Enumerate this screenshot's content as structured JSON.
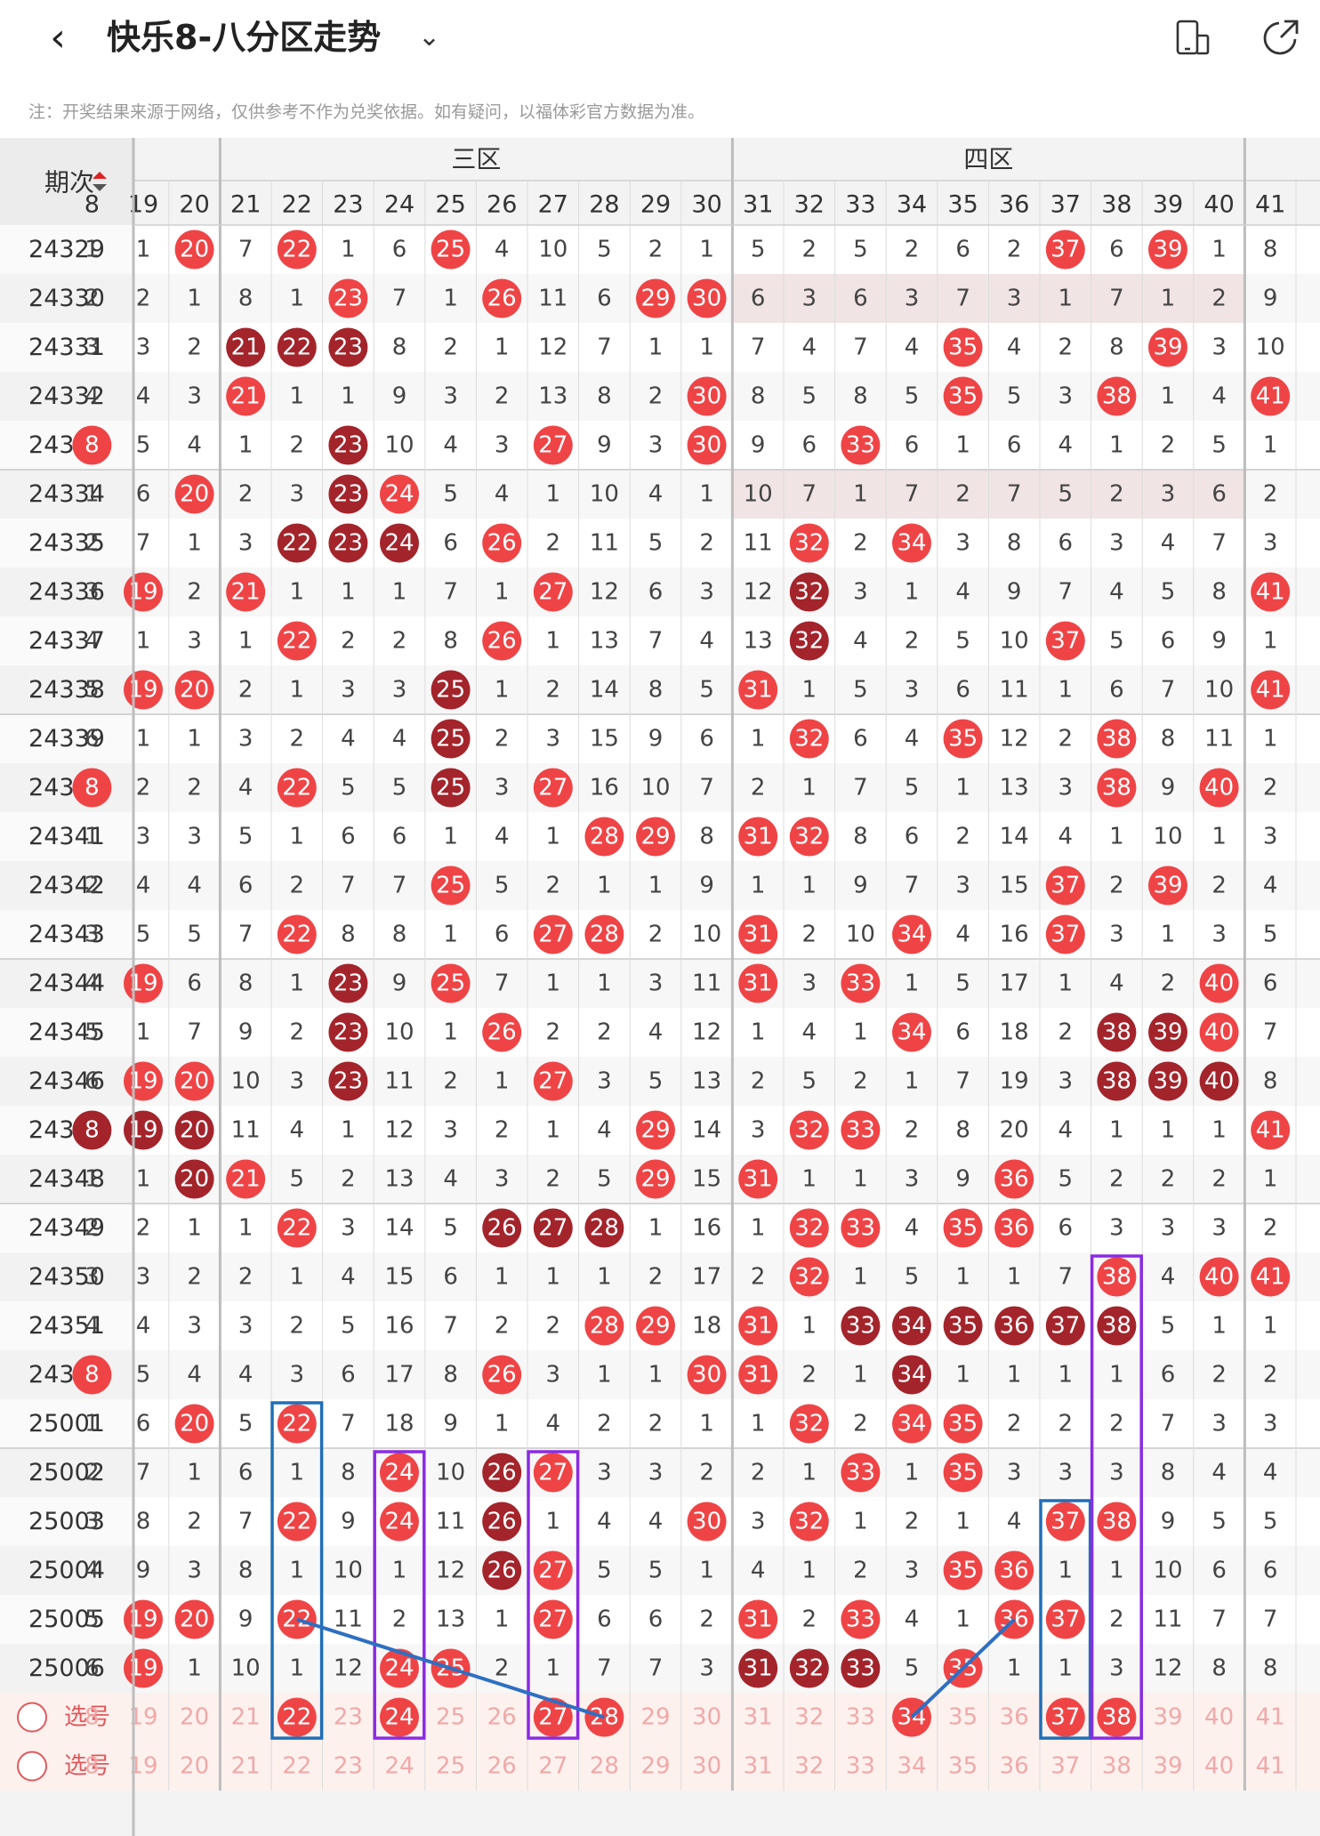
{
  "header": {
    "title": "快乐8-八分区走势",
    "back_icon": "chevron-left-icon",
    "dropdown_icon": "chevron-down-icon",
    "action_icons": [
      "phone-rotate-icon",
      "share-icon"
    ]
  },
  "note": "注：开奖结果来源于网络，仅供参考不作为兑奖依据。如有疑问，以福体彩官方数据为准。",
  "table": {
    "period_header": "期次",
    "zones": [
      {
        "label": "三区",
        "from": 21,
        "to": 30
      },
      {
        "label": "四区",
        "from": 31,
        "to": 40
      }
    ],
    "columns": [
      "8",
      "19",
      "20",
      "21",
      "22",
      "23",
      "24",
      "25",
      "26",
      "27",
      "28",
      "29",
      "30",
      "31",
      "32",
      "33",
      "34",
      "35",
      "36",
      "37",
      "38",
      "39",
      "40",
      "41"
    ],
    "periods": [
      "24329",
      "24330",
      "24331",
      "24332",
      "24333",
      "24334",
      "24335",
      "24336",
      "24337",
      "24338",
      "24339",
      "24340",
      "24341",
      "24342",
      "24343",
      "24344",
      "24345",
      "24346",
      "24347",
      "24348",
      "24349",
      "24350",
      "24351",
      "24352",
      "25001",
      "25002",
      "25003",
      "25004",
      "25005",
      "25006"
    ],
    "cells": [
      [
        "1",
        "1",
        "20",
        "7",
        "22",
        "1",
        "6",
        "25",
        "4",
        "10",
        "5",
        "2",
        "1",
        "5",
        "2",
        "5",
        "2",
        "6",
        "2",
        "37",
        "6",
        "39",
        "1",
        "8"
      ],
      [
        "2",
        "2",
        "1",
        "8",
        "1",
        "23",
        "7",
        "1",
        "26",
        "11",
        "6",
        "29",
        "30",
        "6",
        "3",
        "6",
        "3",
        "7",
        "3",
        "1",
        "7",
        "1",
        "2",
        "9"
      ],
      [
        "3",
        "3",
        "2",
        "21",
        "22",
        "23",
        "8",
        "2",
        "1",
        "12",
        "7",
        "1",
        "1",
        "7",
        "4",
        "7",
        "4",
        "35",
        "4",
        "2",
        "8",
        "39",
        "3",
        "10"
      ],
      [
        "4",
        "4",
        "3",
        "21",
        "1",
        "1",
        "9",
        "3",
        "2",
        "13",
        "8",
        "2",
        "30",
        "8",
        "5",
        "8",
        "5",
        "35",
        "5",
        "3",
        "38",
        "1",
        "4",
        "41"
      ],
      [
        "8",
        "5",
        "4",
        "1",
        "2",
        "23",
        "10",
        "4",
        "3",
        "27",
        "9",
        "3",
        "30",
        "9",
        "6",
        "33",
        "6",
        "1",
        "6",
        "4",
        "1",
        "2",
        "5",
        "1"
      ],
      [
        "1",
        "6",
        "20",
        "2",
        "3",
        "23",
        "24",
        "5",
        "4",
        "1",
        "10",
        "4",
        "1",
        "10",
        "7",
        "1",
        "7",
        "2",
        "7",
        "5",
        "2",
        "3",
        "6",
        "2"
      ],
      [
        "2",
        "7",
        "1",
        "3",
        "22",
        "23",
        "24",
        "6",
        "26",
        "2",
        "11",
        "5",
        "2",
        "11",
        "32",
        "2",
        "34",
        "3",
        "8",
        "6",
        "3",
        "4",
        "7",
        "3"
      ],
      [
        "3",
        "19",
        "2",
        "21",
        "1",
        "1",
        "1",
        "7",
        "1",
        "27",
        "12",
        "6",
        "3",
        "12",
        "32",
        "3",
        "1",
        "4",
        "9",
        "7",
        "4",
        "5",
        "8",
        "41"
      ],
      [
        "4",
        "1",
        "3",
        "1",
        "22",
        "2",
        "2",
        "8",
        "26",
        "1",
        "13",
        "7",
        "4",
        "13",
        "32",
        "4",
        "2",
        "5",
        "10",
        "37",
        "5",
        "6",
        "9",
        "1"
      ],
      [
        "5",
        "19",
        "20",
        "2",
        "1",
        "3",
        "3",
        "25",
        "1",
        "2",
        "14",
        "8",
        "5",
        "31",
        "1",
        "5",
        "3",
        "6",
        "11",
        "1",
        "6",
        "7",
        "10",
        "41"
      ],
      [
        "6",
        "1",
        "1",
        "3",
        "2",
        "4",
        "4",
        "25",
        "2",
        "3",
        "15",
        "9",
        "6",
        "1",
        "32",
        "6",
        "4",
        "35",
        "12",
        "2",
        "38",
        "8",
        "11",
        "1"
      ],
      [
        "8",
        "2",
        "2",
        "4",
        "22",
        "5",
        "5",
        "25",
        "3",
        "27",
        "16",
        "10",
        "7",
        "2",
        "1",
        "7",
        "5",
        "1",
        "13",
        "3",
        "38",
        "9",
        "40",
        "2"
      ],
      [
        "1",
        "3",
        "3",
        "5",
        "1",
        "6",
        "6",
        "1",
        "4",
        "1",
        "28",
        "29",
        "8",
        "31",
        "32",
        "8",
        "6",
        "2",
        "14",
        "4",
        "1",
        "10",
        "1",
        "3"
      ],
      [
        "2",
        "4",
        "4",
        "6",
        "2",
        "7",
        "7",
        "25",
        "5",
        "2",
        "1",
        "1",
        "9",
        "1",
        "1",
        "9",
        "7",
        "3",
        "15",
        "37",
        "2",
        "39",
        "2",
        "4"
      ],
      [
        "3",
        "5",
        "5",
        "7",
        "22",
        "8",
        "8",
        "1",
        "6",
        "27",
        "28",
        "2",
        "10",
        "31",
        "2",
        "10",
        "34",
        "4",
        "16",
        "37",
        "3",
        "1",
        "3",
        "5"
      ],
      [
        "4",
        "19",
        "6",
        "8",
        "1",
        "23",
        "9",
        "25",
        "7",
        "1",
        "1",
        "3",
        "11",
        "31",
        "3",
        "33",
        "1",
        "5",
        "17",
        "1",
        "4",
        "2",
        "40",
        "6"
      ],
      [
        "5",
        "1",
        "7",
        "9",
        "2",
        "23",
        "10",
        "1",
        "26",
        "2",
        "2",
        "4",
        "12",
        "1",
        "4",
        "1",
        "34",
        "6",
        "18",
        "2",
        "38",
        "39",
        "40",
        "7"
      ],
      [
        "6",
        "19",
        "20",
        "10",
        "3",
        "23",
        "11",
        "2",
        "1",
        "27",
        "3",
        "5",
        "13",
        "2",
        "5",
        "2",
        "1",
        "7",
        "19",
        "3",
        "38",
        "39",
        "40",
        "8"
      ],
      [
        "8",
        "19",
        "20",
        "11",
        "4",
        "1",
        "12",
        "3",
        "2",
        "1",
        "4",
        "29",
        "14",
        "3",
        "32",
        "33",
        "2",
        "8",
        "20",
        "4",
        "1",
        "1",
        "1",
        "41"
      ],
      [
        "1",
        "1",
        "20",
        "21",
        "5",
        "2",
        "13",
        "4",
        "3",
        "2",
        "5",
        "29",
        "15",
        "31",
        "1",
        "1",
        "3",
        "9",
        "36",
        "5",
        "2",
        "2",
        "2",
        "1"
      ],
      [
        "2",
        "2",
        "1",
        "1",
        "22",
        "3",
        "14",
        "5",
        "26",
        "27",
        "28",
        "1",
        "16",
        "1",
        "32",
        "33",
        "4",
        "35",
        "36",
        "6",
        "3",
        "3",
        "3",
        "2"
      ],
      [
        "3",
        "3",
        "2",
        "2",
        "1",
        "4",
        "15",
        "6",
        "1",
        "1",
        "1",
        "2",
        "17",
        "2",
        "32",
        "1",
        "5",
        "1",
        "1",
        "7",
        "38",
        "4",
        "40",
        "41"
      ],
      [
        "4",
        "4",
        "3",
        "3",
        "2",
        "5",
        "16",
        "7",
        "2",
        "2",
        "28",
        "29",
        "18",
        "31",
        "1",
        "33",
        "34",
        "35",
        "36",
        "37",
        "38",
        "5",
        "1",
        "1"
      ],
      [
        "8",
        "5",
        "4",
        "4",
        "3",
        "6",
        "17",
        "8",
        "26",
        "3",
        "1",
        "1",
        "30",
        "31",
        "2",
        "1",
        "34",
        "1",
        "1",
        "1",
        "1",
        "6",
        "2",
        "2"
      ],
      [
        "1",
        "6",
        "20",
        "5",
        "22",
        "7",
        "18",
        "9",
        "1",
        "4",
        "2",
        "2",
        "1",
        "1",
        "32",
        "2",
        "34",
        "35",
        "2",
        "2",
        "2",
        "7",
        "3",
        "3"
      ],
      [
        "2",
        "7",
        "1",
        "6",
        "1",
        "8",
        "24",
        "10",
        "26",
        "27",
        "3",
        "3",
        "2",
        "2",
        "1",
        "33",
        "1",
        "35",
        "3",
        "3",
        "3",
        "8",
        "4",
        "4"
      ],
      [
        "3",
        "8",
        "2",
        "7",
        "22",
        "9",
        "24",
        "11",
        "26",
        "1",
        "4",
        "4",
        "30",
        "3",
        "32",
        "1",
        "2",
        "1",
        "4",
        "37",
        "38",
        "9",
        "5",
        "5"
      ],
      [
        "4",
        "9",
        "3",
        "8",
        "1",
        "10",
        "1",
        "12",
        "26",
        "27",
        "5",
        "5",
        "1",
        "4",
        "1",
        "2",
        "3",
        "35",
        "36",
        "1",
        "1",
        "10",
        "6",
        "6"
      ],
      [
        "5",
        "19",
        "20",
        "9",
        "22",
        "11",
        "2",
        "13",
        "1",
        "27",
        "6",
        "6",
        "2",
        "31",
        "2",
        "33",
        "4",
        "1",
        "36",
        "37",
        "2",
        "11",
        "7",
        "7"
      ],
      [
        "6",
        "19",
        "1",
        "10",
        "1",
        "12",
        "24",
        "25",
        "2",
        "1",
        "7",
        "7",
        "3",
        "31",
        "32",
        "33",
        "5",
        "35",
        "1",
        "1",
        "3",
        "12",
        "8",
        "8"
      ]
    ],
    "dark_ball_cells": [
      [
        2,
        3
      ],
      [
        2,
        4
      ],
      [
        2,
        5
      ],
      [
        4,
        5
      ],
      [
        5,
        5
      ],
      [
        6,
        4
      ],
      [
        6,
        5
      ],
      [
        6,
        6
      ],
      [
        7,
        14
      ],
      [
        8,
        14
      ],
      [
        9,
        7
      ],
      [
        10,
        7
      ],
      [
        11,
        7
      ],
      [
        15,
        5
      ],
      [
        16,
        5
      ],
      [
        16,
        20
      ],
      [
        16,
        21
      ],
      [
        17,
        5
      ],
      [
        17,
        20
      ],
      [
        17,
        21
      ],
      [
        17,
        22
      ],
      [
        18,
        0
      ],
      [
        18,
        1
      ],
      [
        18,
        2
      ],
      [
        19,
        2
      ],
      [
        20,
        8
      ],
      [
        20,
        9
      ],
      [
        20,
        10
      ],
      [
        22,
        15
      ],
      [
        22,
        16
      ],
      [
        22,
        17
      ],
      [
        22,
        18
      ],
      [
        22,
        19
      ],
      [
        22,
        20
      ],
      [
        23,
        16
      ],
      [
        25,
        8
      ],
      [
        26,
        8
      ],
      [
        27,
        8
      ],
      [
        29,
        13
      ],
      [
        29,
        14
      ],
      [
        29,
        15
      ]
    ],
    "selection_rows": [
      {
        "label": "选号",
        "picked": [
          "22",
          "24",
          "27",
          "28",
          "34",
          "37",
          "38"
        ]
      },
      {
        "label": "选号",
        "picked": []
      }
    ],
    "highlighted_rows": [
      1,
      5
    ],
    "colors": {
      "ball_red": "#ef4446",
      "ball_dark": "#a3242b",
      "box_blue": "#1f6fb8",
      "box_purple": "#8a2be2",
      "line_blue": "#2e6fc2",
      "text_red": "#e0585c"
    }
  }
}
